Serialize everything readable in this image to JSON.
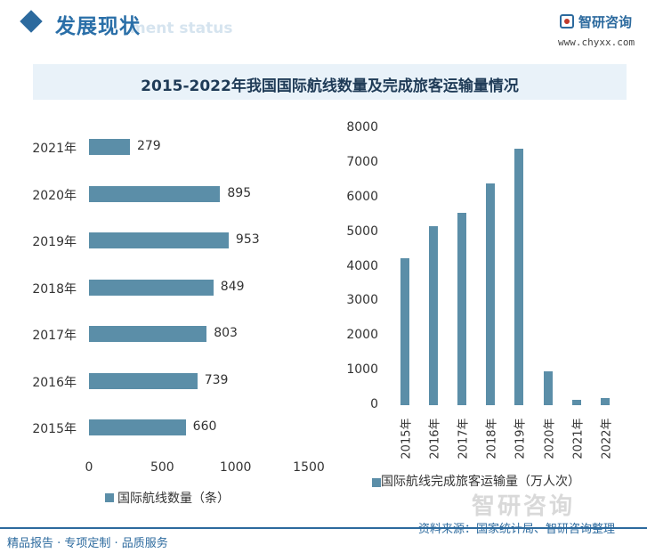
{
  "header": {
    "section_title": "发展现状",
    "section_subtitle": "ment status",
    "logo_name": "智研咨询",
    "logo_url": "www.chyxx.com"
  },
  "brand_watermark": "智研咨询",
  "colors": {
    "bar": "#5b8ea8",
    "accent": "#2c6a9e",
    "title_band": "#e9f2f9"
  },
  "chart_data": [
    {
      "type": "bar",
      "orientation": "horizontal",
      "title": "2015-2022年我国国际航线数量及完成旅客运输量情况",
      "categories": [
        "2021年",
        "2020年",
        "2019年",
        "2018年",
        "2017年",
        "2016年",
        "2015年"
      ],
      "series": [
        {
          "name": "国际航线数量（条）",
          "values": [
            279,
            895,
            953,
            849,
            803,
            739,
            660
          ]
        }
      ],
      "xlim": [
        0,
        1500
      ],
      "xticks": [
        "0",
        "500",
        "1000",
        "1500"
      ],
      "grid": false,
      "legend": "bottom"
    },
    {
      "type": "bar",
      "orientation": "vertical",
      "categories": [
        "2015年",
        "2016年",
        "2017年",
        "2018年",
        "2019年",
        "2020年",
        "2021年",
        "2022年"
      ],
      "series": [
        {
          "name": "国际航线完成旅客运输量（万人次）",
          "values": [
            4250,
            5180,
            5550,
            6400,
            7420,
            980,
            150,
            200
          ]
        }
      ],
      "ylim": [
        0,
        8000
      ],
      "yticks": [
        "0",
        "1000",
        "2000",
        "3000",
        "4000",
        "5000",
        "6000",
        "7000",
        "8000"
      ],
      "grid": false,
      "legend": "bottom"
    }
  ],
  "footer": {
    "left": "精品报告 · 专项定制 · 品质服务",
    "source": "资料来源：国家统计局、智研咨询整理"
  }
}
